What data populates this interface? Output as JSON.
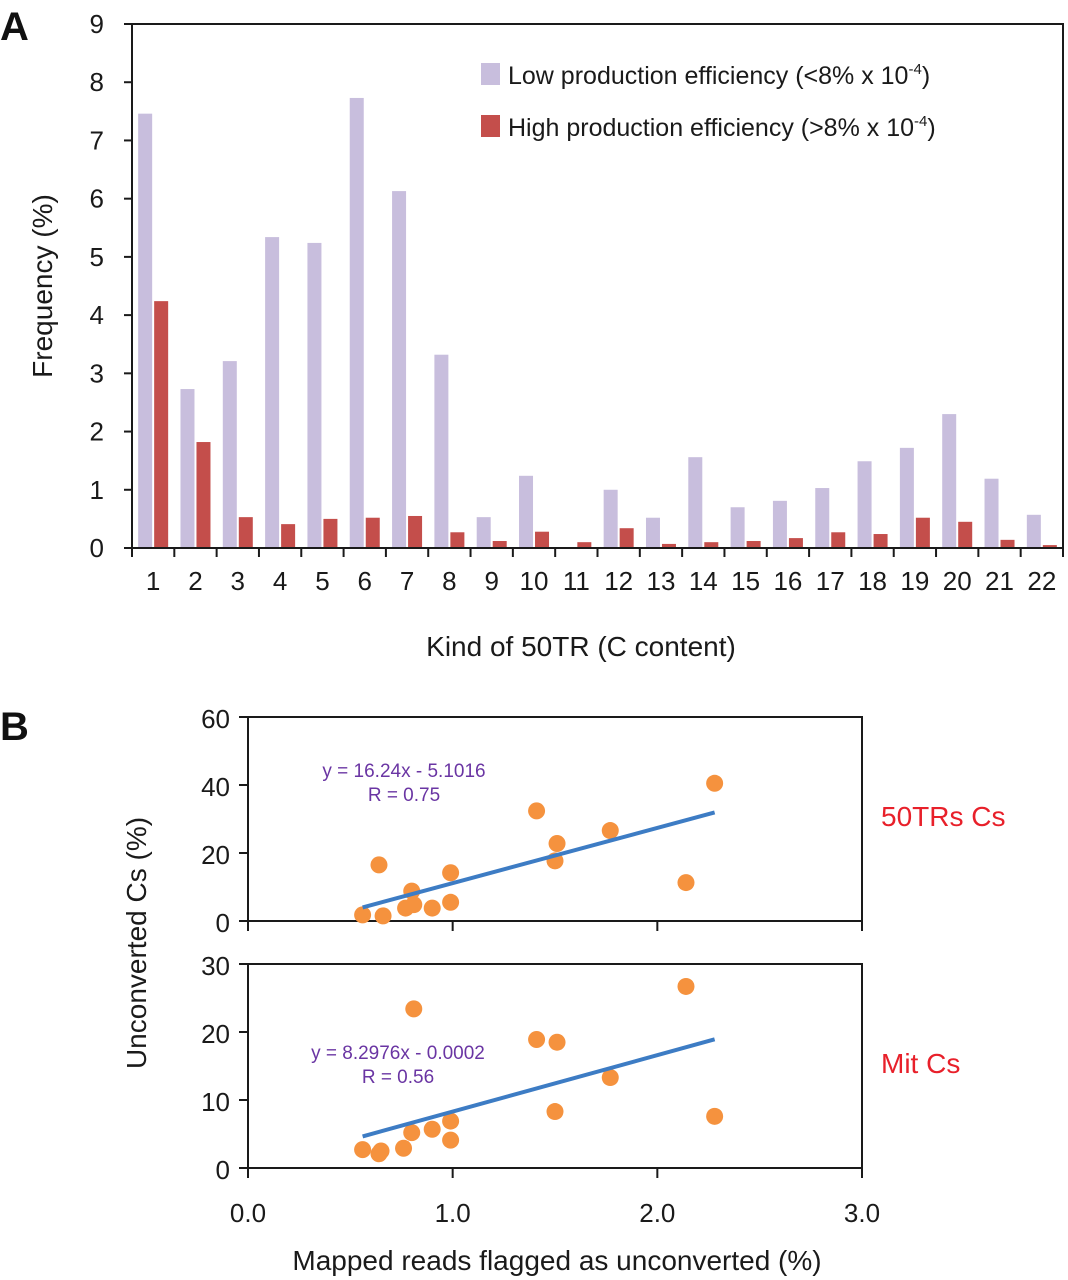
{
  "panels": {
    "a_letter": "A",
    "b_letter": "B"
  },
  "chart_data": [
    {
      "type": "bar",
      "panel": "A",
      "title": "",
      "xlabel": "Kind of 50TR (C content)",
      "ylabel": "Frequency (%)",
      "ylim": [
        0,
        9
      ],
      "yticks": [
        "0",
        "1",
        "2",
        "3",
        "4",
        "5",
        "6",
        "7",
        "8",
        "9"
      ],
      "categories": [
        "1",
        "2",
        "3",
        "4",
        "5",
        "6",
        "7",
        "8",
        "9",
        "10",
        "11",
        "12",
        "13",
        "14",
        "15",
        "16",
        "17",
        "18",
        "19",
        "20",
        "21",
        "22"
      ],
      "legend_position": "top-right",
      "series": [
        {
          "name": "Low production efficiency (<8% x 10",
          "name_sup": "-4",
          "name_suffix": ")",
          "color": "#c8bedd",
          "values": [
            7.46,
            2.73,
            3.21,
            5.34,
            5.24,
            7.73,
            6.13,
            3.32,
            0.53,
            1.24,
            0.0,
            1.0,
            0.52,
            1.56,
            0.7,
            0.81,
            1.03,
            1.49,
            1.72,
            2.3,
            1.19,
            0.57
          ]
        },
        {
          "name": "High production efficiency (>8% x 10",
          "name_sup": "-4",
          "name_suffix": ")",
          "color": "#c44e4b",
          "values": [
            4.24,
            1.82,
            0.53,
            0.41,
            0.5,
            0.52,
            0.55,
            0.27,
            0.12,
            0.28,
            0.1,
            0.34,
            0.07,
            0.1,
            0.12,
            0.17,
            0.27,
            0.24,
            0.52,
            0.45,
            0.14,
            0.05
          ]
        }
      ]
    },
    {
      "type": "scatter",
      "panel": "B-top",
      "side_label": "50TRs Cs",
      "xlim": [
        0,
        3
      ],
      "ylim": [
        0,
        60
      ],
      "yticks": [
        "0",
        "20",
        "40",
        "60"
      ],
      "point_color": "#f5923e",
      "fit_color": "#3d7cc4",
      "equation": "y = 16.24x - 5.1016",
      "r_label": "R = 0.75",
      "fit": {
        "slope": 16.24,
        "intercept": -5.1016,
        "x_range": [
          0.56,
          2.28
        ]
      },
      "points": [
        {
          "x": 0.56,
          "y": 1.8
        },
        {
          "x": 0.64,
          "y": 16.5
        },
        {
          "x": 0.66,
          "y": 1.5
        },
        {
          "x": 0.77,
          "y": 3.8
        },
        {
          "x": 0.8,
          "y": 8.8
        },
        {
          "x": 0.81,
          "y": 4.8
        },
        {
          "x": 0.9,
          "y": 3.8
        },
        {
          "x": 0.99,
          "y": 14.2
        },
        {
          "x": 0.99,
          "y": 5.5
        },
        {
          "x": 1.41,
          "y": 32.4
        },
        {
          "x": 1.5,
          "y": 17.7
        },
        {
          "x": 1.51,
          "y": 22.8
        },
        {
          "x": 1.77,
          "y": 26.6
        },
        {
          "x": 2.14,
          "y": 11.3
        },
        {
          "x": 2.28,
          "y": 40.5
        }
      ]
    },
    {
      "type": "scatter",
      "panel": "B-bottom",
      "side_label": "Mit Cs",
      "xlim": [
        0,
        3
      ],
      "ylim": [
        0,
        30
      ],
      "yticks": [
        "0",
        "10",
        "20",
        "30"
      ],
      "point_color": "#f5923e",
      "fit_color": "#3d7cc4",
      "equation": "y = 8.2976x - 0.0002",
      "r_label": "R = 0.56",
      "fit": {
        "slope": 8.2976,
        "intercept": -0.0002,
        "x_range": [
          0.56,
          2.28
        ]
      },
      "points": [
        {
          "x": 0.56,
          "y": 2.7
        },
        {
          "x": 0.64,
          "y": 2.1
        },
        {
          "x": 0.65,
          "y": 2.5
        },
        {
          "x": 0.76,
          "y": 2.9
        },
        {
          "x": 0.8,
          "y": 5.2
        },
        {
          "x": 0.81,
          "y": 23.4
        },
        {
          "x": 0.9,
          "y": 5.7
        },
        {
          "x": 0.99,
          "y": 6.9
        },
        {
          "x": 0.99,
          "y": 4.1
        },
        {
          "x": 1.41,
          "y": 18.9
        },
        {
          "x": 1.5,
          "y": 8.3
        },
        {
          "x": 1.51,
          "y": 18.5
        },
        {
          "x": 1.77,
          "y": 13.3
        },
        {
          "x": 2.14,
          "y": 26.7
        },
        {
          "x": 2.28,
          "y": 7.6
        }
      ]
    }
  ],
  "panel_b_axes": {
    "xlabel": "Mapped reads flagged as unconverted (%)",
    "ylabel": "Unconverted Cs  (%)",
    "xticks": [
      "0.0",
      "1.0",
      "2.0",
      "3.0"
    ]
  }
}
